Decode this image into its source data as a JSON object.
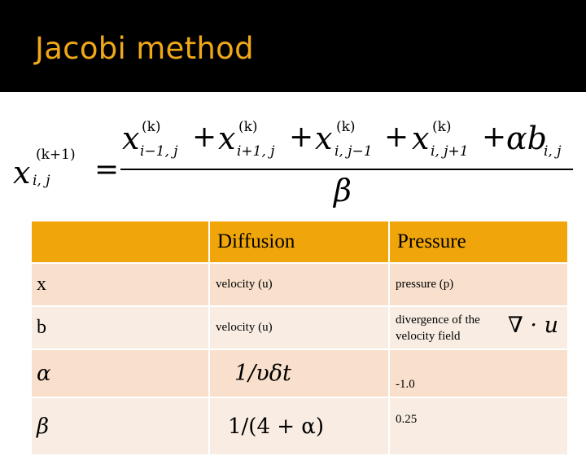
{
  "slide": {
    "title": "Jacobi method"
  },
  "formula": {
    "lhs_var": "x",
    "lhs_sup": "(k+1)",
    "lhs_sub": "i, j",
    "equals": "=",
    "terms": [
      {
        "var": "x",
        "sup": "(k)",
        "sub": "i−1, j"
      },
      {
        "var": "x",
        "sup": "(k)",
        "sub": "i+1, j"
      },
      {
        "var": "x",
        "sup": "(k)",
        "sub": "i, j−1"
      },
      {
        "var": "x",
        "sup": "(k)",
        "sub": "i, j+1"
      }
    ],
    "plus": "+",
    "alpha_b": "αb",
    "alpha_b_sub": "i, j",
    "denominator": "β"
  },
  "table": {
    "headers": [
      "",
      "Diffusion",
      "Pressure"
    ],
    "rows": [
      {
        "label": "x",
        "diffusion": "velocity (u)",
        "pressure": "pressure (p)"
      },
      {
        "label": "b",
        "diffusion": "velocity (u)",
        "pressure": "divergence of the velocity field",
        "pressure_math": "∇ · u"
      },
      {
        "label": "α",
        "diffusion_math": "1/υδt",
        "pressure": "-1.0"
      },
      {
        "label": "β",
        "diffusion_math": "1/(4 + α)",
        "pressure": "0.25"
      }
    ]
  }
}
